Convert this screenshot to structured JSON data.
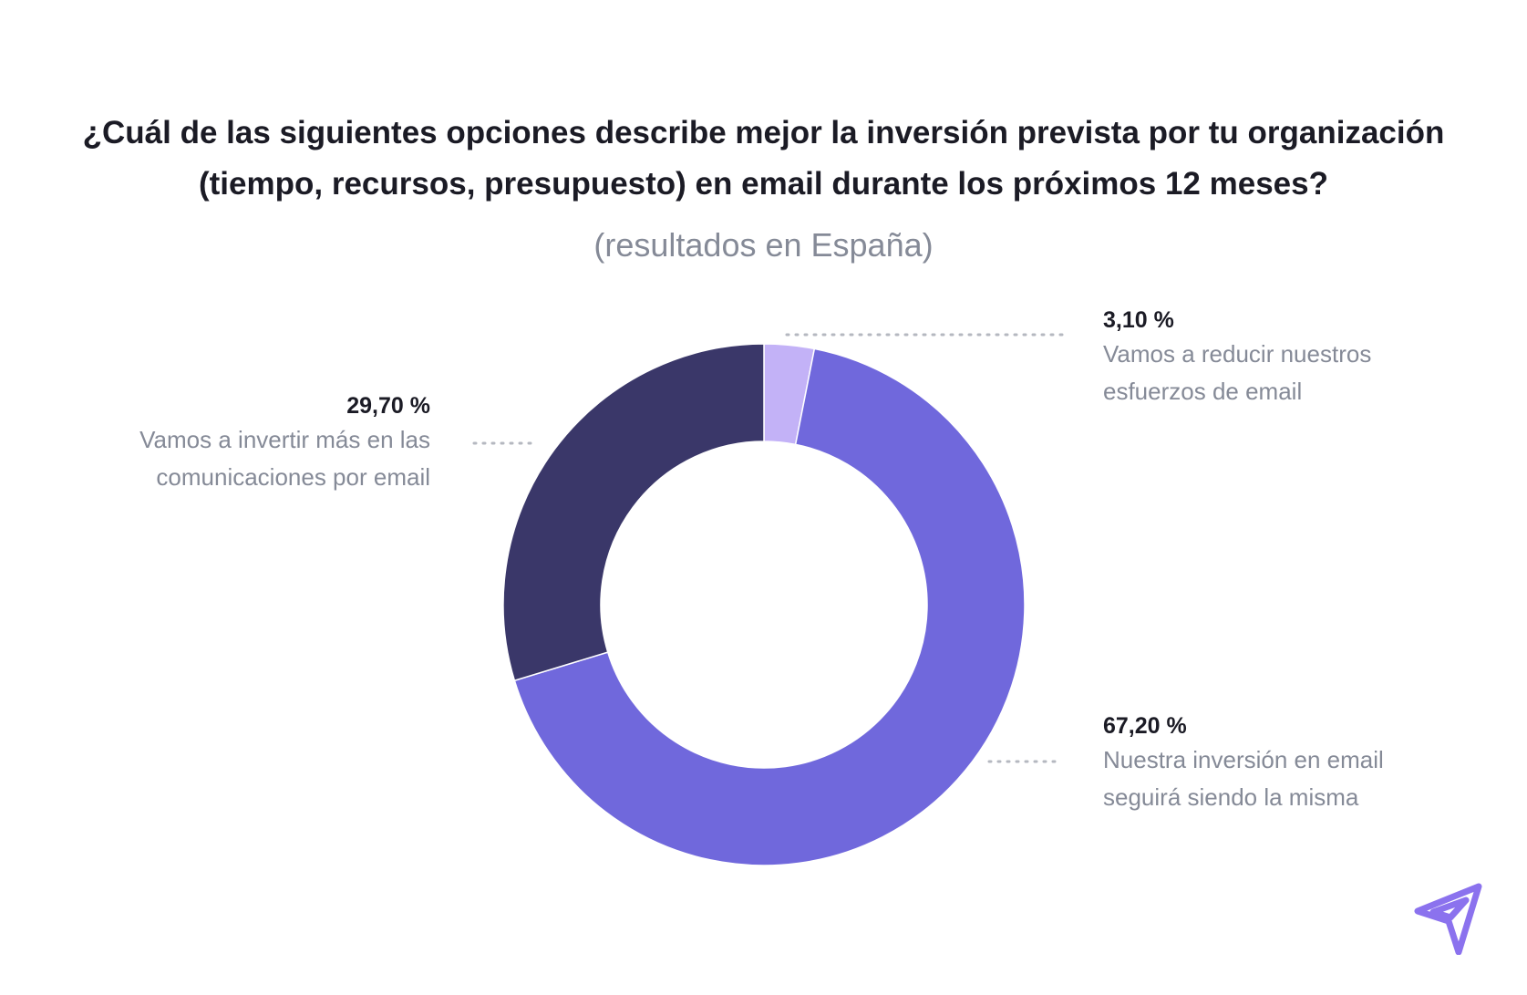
{
  "chart_data": {
    "type": "pie",
    "variant": "donut",
    "title": "¿Cuál de las siguientes opciones describe mejor la inversión prevista por tu organización (tiempo, recursos, presupuesto) en email durante los próximos 12 meses?",
    "subtitle": "(resultados en España)",
    "slices": [
      {
        "label": "Vamos a reducir nuestros esfuerzos de email",
        "value": 3.1,
        "display": "3,10 %",
        "color": "#c3b2f7"
      },
      {
        "label": "Nuestra inversión en email seguirá siendo la misma",
        "value": 67.2,
        "display": "67,20 %",
        "color": "#7068dc"
      },
      {
        "label": "Vamos a invertir más en las comunicaciones por email",
        "value": 29.7,
        "display": "29,70 %",
        "color": "#3a3769"
      }
    ]
  },
  "logo": {
    "icon": "paper-plane-icon",
    "color": "#8b72ee"
  }
}
